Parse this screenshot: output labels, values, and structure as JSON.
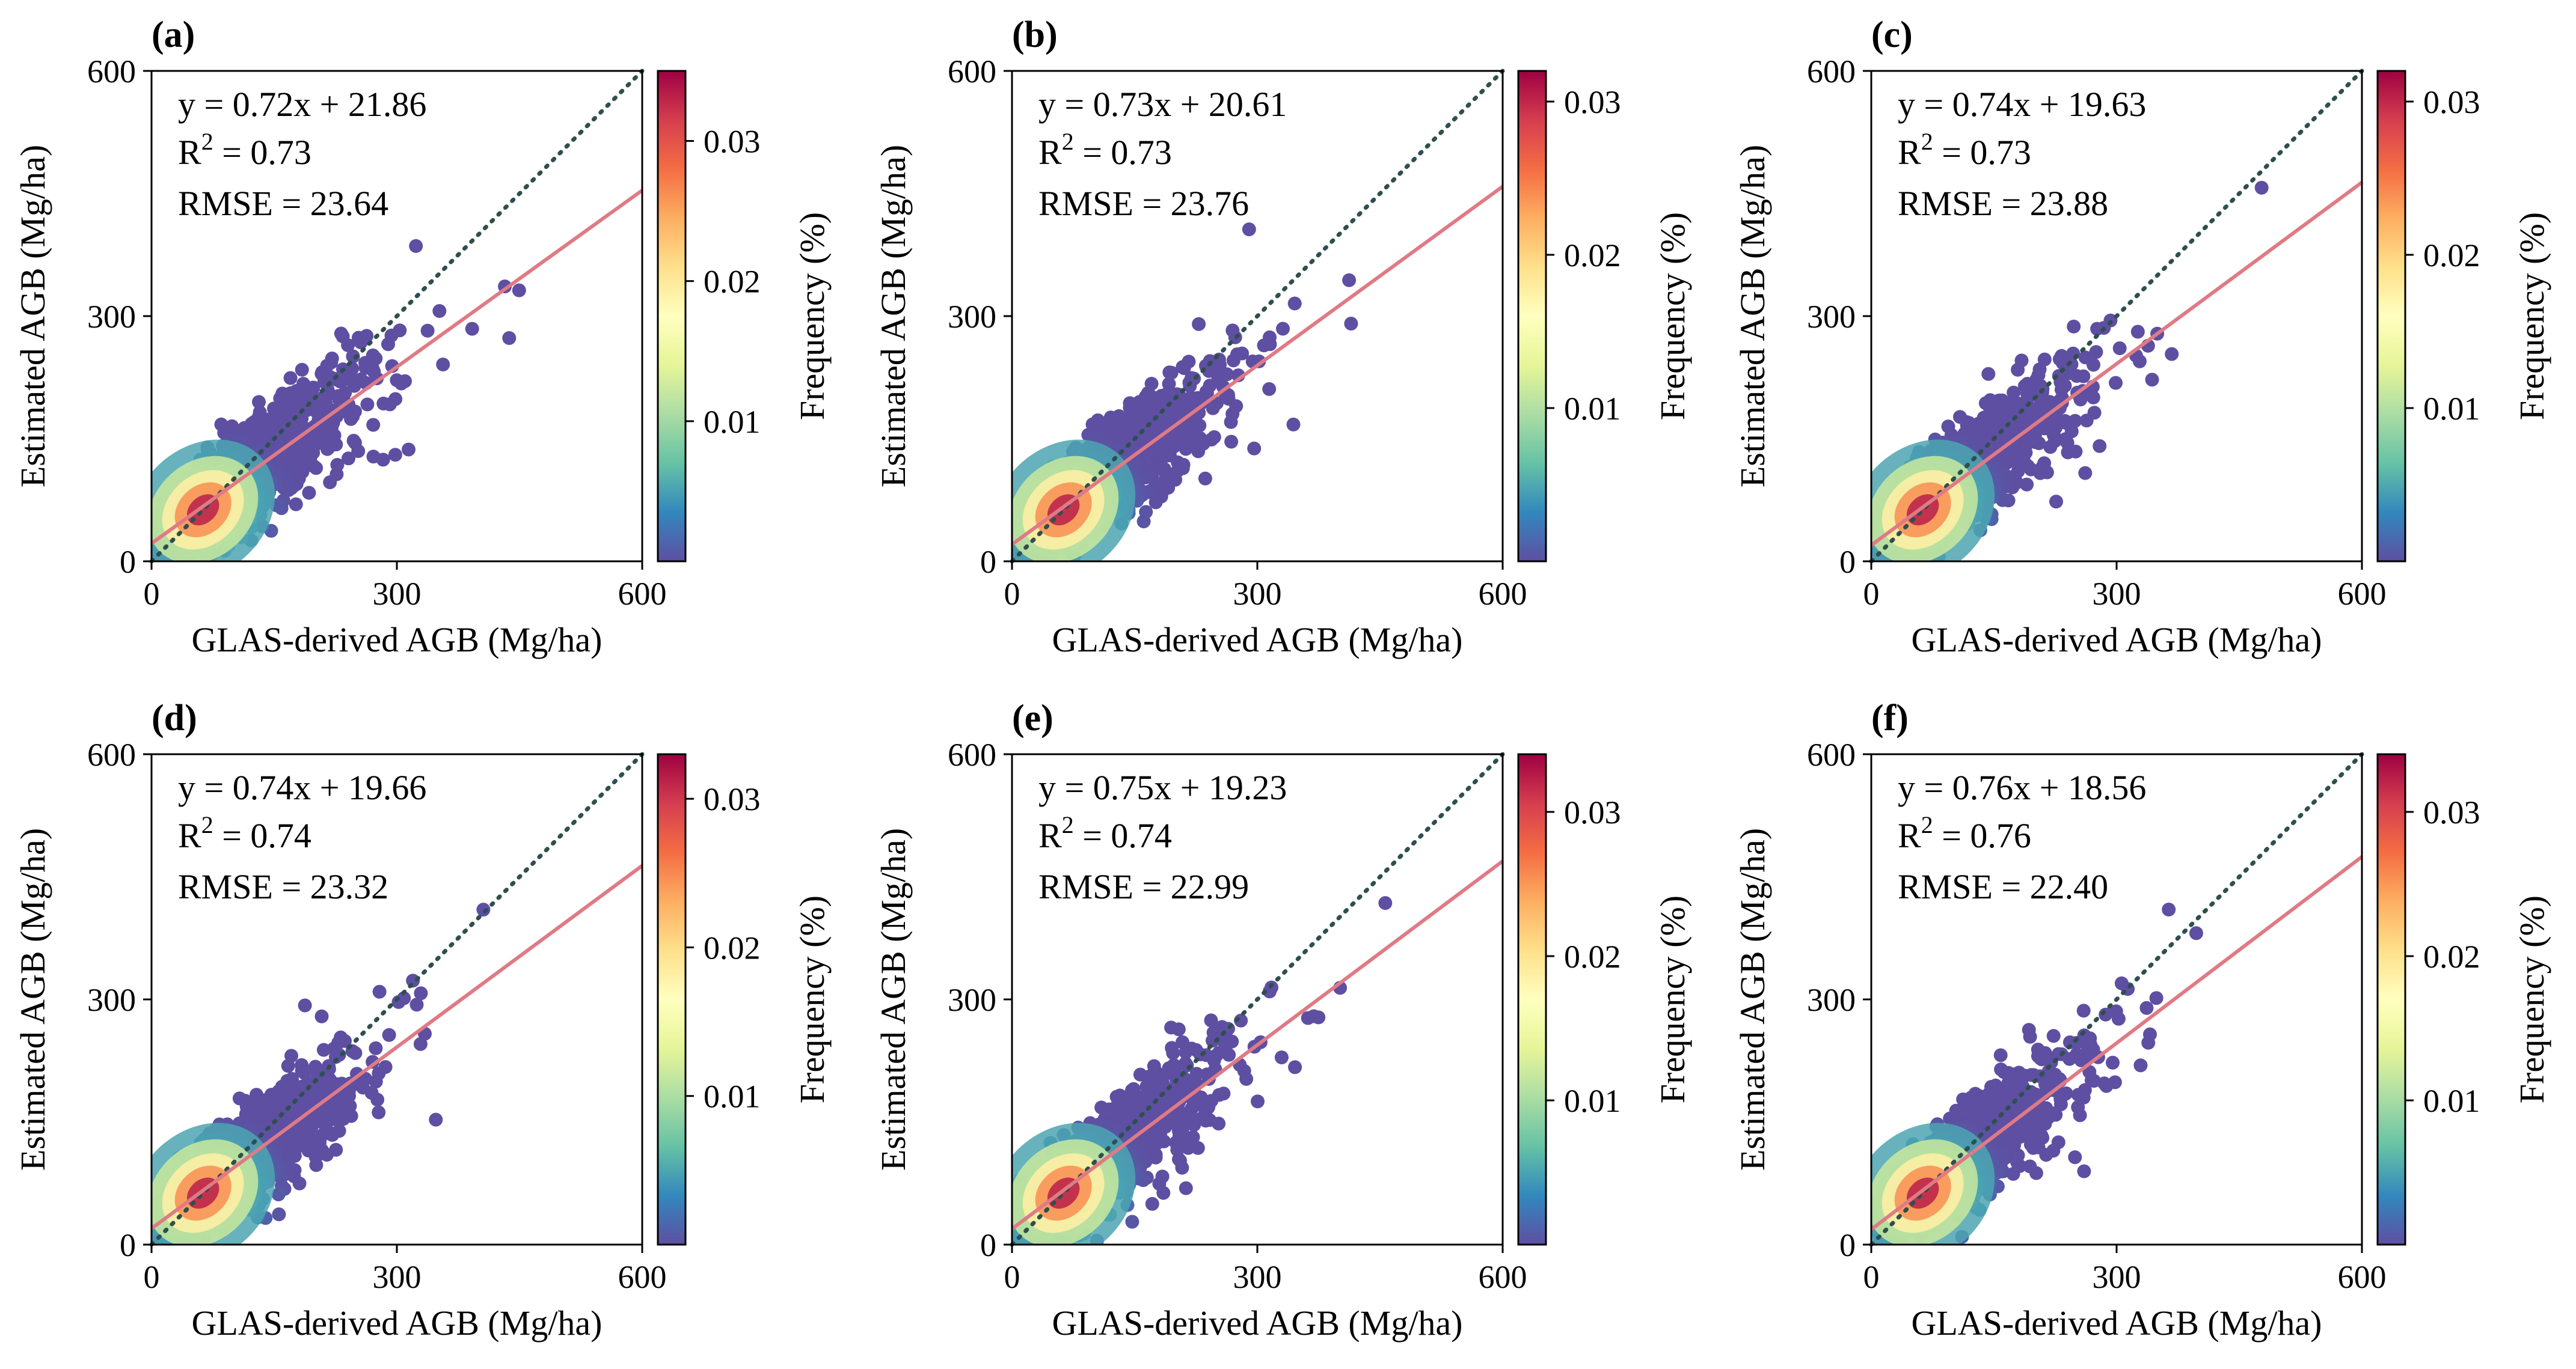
{
  "figure": {
    "colors": {
      "fit_line": "#e07a85",
      "identity_line": "#2f4f4f",
      "spectral": [
        "#5e4fa2",
        "#3288bd",
        "#66c2a5",
        "#abdda4",
        "#e6f598",
        "#ffffbf",
        "#fee08b",
        "#fdae61",
        "#f46d43",
        "#d53e4f",
        "#9e0142"
      ]
    }
  },
  "chart_data": [
    {
      "type": "scatter",
      "panel_label": "(a)",
      "xlabel": "GLAS-derived AGB (Mg/ha)",
      "ylabel": "Estimated AGB (Mg/ha)",
      "xlim": [
        0,
        600
      ],
      "ylim": [
        0,
        600
      ],
      "xticks": [
        "0",
        "300",
        "600"
      ],
      "yticks": [
        "0",
        "300",
        "600"
      ],
      "fit": {
        "slope": 0.72,
        "intercept": 21.86,
        "equation": "y = 0.72x + 21.86",
        "r2_label": "R",
        "r2_exp": "2",
        "r2_value": " = 0.73",
        "rmse": "RMSE = 23.64"
      },
      "colorbar": {
        "label": "Frequency (%)",
        "range": [
          0.0,
          0.035
        ],
        "ticks": [
          "0.01",
          "0.02",
          "0.03"
        ],
        "tick_values": [
          0.01,
          0.02,
          0.03
        ]
      }
    },
    {
      "type": "scatter",
      "panel_label": "(b)",
      "xlabel": "GLAS-derived AGB (Mg/ha)",
      "ylabel": "Estimated AGB (Mg/ha)",
      "xlim": [
        0,
        600
      ],
      "ylim": [
        0,
        600
      ],
      "xticks": [
        "0",
        "300",
        "600"
      ],
      "yticks": [
        "0",
        "300",
        "600"
      ],
      "fit": {
        "slope": 0.73,
        "intercept": 20.61,
        "equation": "y = 0.73x + 20.61",
        "r2_label": "R",
        "r2_exp": "2",
        "r2_value": " = 0.73",
        "rmse": "RMSE = 23.76"
      },
      "colorbar": {
        "label": "Frequency (%)",
        "range": [
          0.0,
          0.032
        ],
        "ticks": [
          "0.01",
          "0.02",
          "0.03"
        ],
        "tick_values": [
          0.01,
          0.02,
          0.03
        ]
      }
    },
    {
      "type": "scatter",
      "panel_label": "(c)",
      "xlabel": "GLAS-derived AGB (Mg/ha)",
      "ylabel": "Estimated AGB (Mg/ha)",
      "xlim": [
        0,
        600
      ],
      "ylim": [
        0,
        600
      ],
      "xticks": [
        "0",
        "300",
        "600"
      ],
      "yticks": [
        "0",
        "300",
        "600"
      ],
      "fit": {
        "slope": 0.74,
        "intercept": 19.63,
        "equation": "y = 0.74x + 19.63",
        "r2_label": "R",
        "r2_exp": "2",
        "r2_value": " = 0.73",
        "rmse": "RMSE = 23.88"
      },
      "colorbar": {
        "label": "Frequency (%)",
        "range": [
          0.0,
          0.032
        ],
        "ticks": [
          "0.01",
          "0.02",
          "0.03"
        ],
        "tick_values": [
          0.01,
          0.02,
          0.03
        ]
      }
    },
    {
      "type": "scatter",
      "panel_label": "(d)",
      "xlabel": "GLAS-derived AGB (Mg/ha)",
      "ylabel": "Estimated AGB (Mg/ha)",
      "xlim": [
        0,
        600
      ],
      "ylim": [
        0,
        600
      ],
      "xticks": [
        "0",
        "300",
        "600"
      ],
      "yticks": [
        "0",
        "300",
        "600"
      ],
      "fit": {
        "slope": 0.74,
        "intercept": 19.66,
        "equation": "y = 0.74x + 19.66",
        "r2_label": "R",
        "r2_exp": "2",
        "r2_value": " = 0.74",
        "rmse": "RMSE = 23.32"
      },
      "colorbar": {
        "label": "Frequency (%)",
        "range": [
          0.0,
          0.033
        ],
        "ticks": [
          "0.01",
          "0.02",
          "0.03"
        ],
        "tick_values": [
          0.01,
          0.02,
          0.03
        ]
      }
    },
    {
      "type": "scatter",
      "panel_label": "(e)",
      "xlabel": "GLAS-derived AGB (Mg/ha)",
      "ylabel": "Estimated AGB (Mg/ha)",
      "xlim": [
        0,
        600
      ],
      "ylim": [
        0,
        600
      ],
      "xticks": [
        "0",
        "300",
        "600"
      ],
      "yticks": [
        "0",
        "300",
        "600"
      ],
      "fit": {
        "slope": 0.75,
        "intercept": 19.23,
        "equation": "y = 0.75x + 19.23",
        "r2_label": "R",
        "r2_exp": "2",
        "r2_value": " = 0.74",
        "rmse": "RMSE = 22.99"
      },
      "colorbar": {
        "label": "Frequency (%)",
        "range": [
          0.0,
          0.034
        ],
        "ticks": [
          "0.01",
          "0.02",
          "0.03"
        ],
        "tick_values": [
          0.01,
          0.02,
          0.03
        ]
      }
    },
    {
      "type": "scatter",
      "panel_label": "(f)",
      "xlabel": "GLAS-derived AGB (Mg/ha)",
      "ylabel": "Estimated AGB (Mg/ha)",
      "xlim": [
        0,
        600
      ],
      "ylim": [
        0,
        600
      ],
      "xticks": [
        "0",
        "300",
        "600"
      ],
      "yticks": [
        "0",
        "300",
        "600"
      ],
      "fit": {
        "slope": 0.76,
        "intercept": 18.56,
        "equation": "y = 0.76x + 18.56",
        "r2_label": "R",
        "r2_exp": "2",
        "r2_value": " = 0.76",
        "rmse": "RMSE = 22.40"
      },
      "colorbar": {
        "label": "Frequency (%)",
        "range": [
          0.0,
          0.034
        ],
        "ticks": [
          "0.01",
          "0.02",
          "0.03"
        ],
        "tick_values": [
          0.01,
          0.02,
          0.03
        ]
      }
    }
  ]
}
